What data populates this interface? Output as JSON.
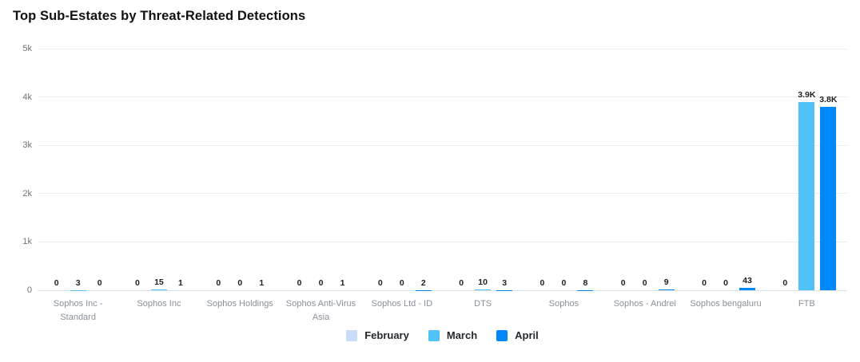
{
  "chart_data": {
    "type": "bar",
    "title": "Top Sub-Estates by Threat-Related Detections",
    "categories": [
      "Sophos Inc - Standard",
      "Sophos Inc",
      "Sophos Holdings",
      "Sophos Anti-Virus Asia",
      "Sophos Ltd - ID",
      "DTS",
      "Sophos",
      "Sophos - Andrei",
      "Sophos bengaluru",
      "FTB"
    ],
    "series": [
      {
        "name": "February",
        "color": "#C9DCF8",
        "values": [
          0,
          0,
          0,
          0,
          0,
          0,
          0,
          0,
          0,
          0
        ],
        "labels": [
          "0",
          "0",
          "0",
          "0",
          "0",
          "0",
          "0",
          "0",
          "0",
          "0"
        ]
      },
      {
        "name": "March",
        "color": "#4FC3F7",
        "values": [
          3,
          15,
          0,
          0,
          0,
          10,
          0,
          0,
          0,
          3900
        ],
        "labels": [
          "3",
          "15",
          "0",
          "0",
          "0",
          "10",
          "0",
          "0",
          "0",
          "3.9K"
        ]
      },
      {
        "name": "April",
        "color": "#0088F8",
        "values": [
          0,
          1,
          1,
          1,
          2,
          3,
          8,
          9,
          43,
          3800
        ],
        "labels": [
          "0",
          "1",
          "1",
          "1",
          "2",
          "3",
          "8",
          "9",
          "43",
          "3.8K"
        ]
      }
    ],
    "ylim": [
      0,
      5000
    ],
    "yticks": [
      {
        "label": "5k",
        "value": 5000
      },
      {
        "label": "4k",
        "value": 4000
      },
      {
        "label": "3k",
        "value": 3000
      },
      {
        "label": "2k",
        "value": 2000
      },
      {
        "label": "1k",
        "value": 1000
      },
      {
        "label": "0",
        "value": 0
      }
    ],
    "grid": true,
    "legend_position": "bottom"
  },
  "palette": {
    "background": "#FFFFFF",
    "title_text": "#111111",
    "gridline": "#ECECEC",
    "baseline": "#D9DFE8",
    "y_tick_text": "#6E737B",
    "x_tick_text": "#8A909A",
    "value_label_text": "#1F1F1F",
    "legend_text": "#24292F"
  }
}
